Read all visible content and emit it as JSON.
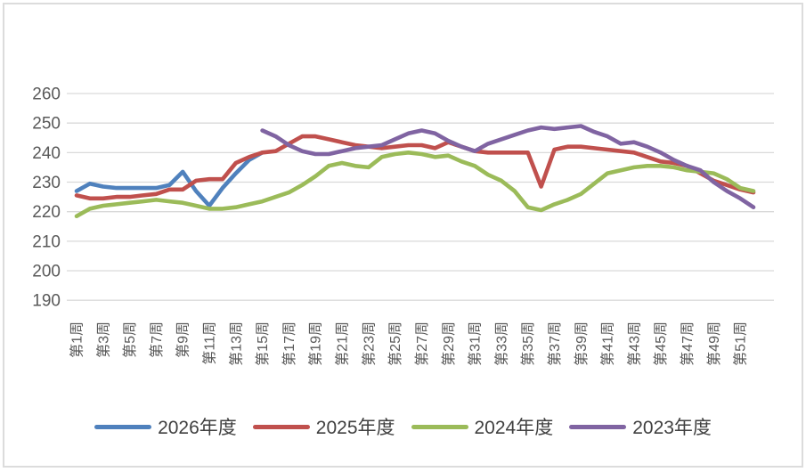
{
  "chart_data": {
    "type": "line",
    "title": "",
    "xlabel": "",
    "ylabel": "",
    "grid": true,
    "legend_position": "bottom",
    "y_axis": {
      "min": 190,
      "max": 260,
      "step": 10,
      "ticks": [
        260,
        250,
        240,
        230,
        220,
        210,
        200,
        190
      ]
    },
    "x_axis": {
      "unit": "week",
      "weeks_total": 52,
      "tick_labels": [
        "第1周",
        "第3周",
        "第5周",
        "第7周",
        "第9周",
        "第11周",
        "第13周",
        "第15周",
        "第17周",
        "第19周",
        "第21周",
        "第23周",
        "第25周",
        "第27周",
        "第29周",
        "第31周",
        "第33周",
        "第35周",
        "第37周",
        "第39周",
        "第41周",
        "第43周",
        "第45周",
        "第47周",
        "第49周",
        "第51周"
      ],
      "tick_weeks": [
        1,
        3,
        5,
        7,
        9,
        11,
        13,
        15,
        17,
        19,
        21,
        23,
        25,
        27,
        29,
        31,
        33,
        35,
        37,
        39,
        41,
        43,
        45,
        47,
        49,
        51
      ]
    },
    "series": [
      {
        "name": "2026年度",
        "color": "#4F81BD",
        "values": [
          227,
          229.5,
          228.5,
          228,
          228,
          228,
          228,
          229,
          233.5,
          227,
          222,
          228,
          233,
          237.5,
          240,
          null,
          null,
          null,
          null,
          null,
          null,
          null,
          null,
          null,
          null,
          null,
          null,
          null,
          null,
          null,
          null,
          null,
          null,
          null,
          null,
          null,
          null,
          null,
          null,
          null,
          null,
          null,
          null,
          null,
          null,
          null,
          null,
          null,
          null,
          null,
          null,
          null
        ]
      },
      {
        "name": "2025年度",
        "color": "#C0504D",
        "values": [
          225.5,
          224.5,
          224.5,
          225,
          225,
          225.5,
          226,
          227.5,
          227.5,
          230.5,
          231,
          231,
          236.5,
          238.5,
          240,
          240.5,
          243,
          245.5,
          245.5,
          244.5,
          243.5,
          242.5,
          242,
          241.5,
          242,
          242.5,
          242.5,
          241.5,
          243.5,
          242,
          240.5,
          240,
          240,
          240,
          240,
          228.5,
          241,
          242,
          242,
          241.5,
          241,
          240.5,
          240,
          238.5,
          237,
          236.5,
          235.5,
          233,
          230.5,
          229,
          227.5,
          226.5
        ]
      },
      {
        "name": "2024年度",
        "color": "#9BBB59",
        "values": [
          218.5,
          221,
          222,
          222.5,
          223,
          223.5,
          224,
          223.5,
          223,
          222,
          221,
          221,
          221.5,
          222.5,
          223.5,
          225,
          226.5,
          229,
          232,
          235.5,
          236.5,
          235.5,
          235,
          238.5,
          239.5,
          240,
          239.5,
          238.5,
          239,
          237,
          235.5,
          232.5,
          230.5,
          227,
          221.5,
          220.5,
          222.5,
          224,
          226,
          229.5,
          233,
          234,
          235,
          235.5,
          235.5,
          235,
          234,
          233.5,
          233,
          231,
          228,
          227
        ]
      },
      {
        "name": "2023年度",
        "color": "#8064A2",
        "values": [
          null,
          null,
          null,
          null,
          null,
          null,
          null,
          null,
          null,
          null,
          null,
          null,
          null,
          null,
          247.5,
          245.5,
          242.5,
          240.5,
          239.5,
          239.5,
          240.5,
          241.5,
          242,
          242.5,
          244.5,
          246.5,
          247.5,
          246.5,
          244,
          242,
          240.5,
          243,
          244.5,
          246,
          247.5,
          248.5,
          248,
          248.5,
          249,
          247,
          245.5,
          243,
          243.5,
          242,
          240,
          237.5,
          235.5,
          234,
          230,
          227,
          224.5,
          221.5
        ]
      }
    ]
  },
  "legend": {
    "items": [
      {
        "label": "2026年度",
        "color": "#4F81BD"
      },
      {
        "label": "2025年度",
        "color": "#C0504D"
      },
      {
        "label": "2024年度",
        "color": "#9BBB59"
      },
      {
        "label": "2023年度",
        "color": "#8064A2"
      }
    ]
  },
  "style": {
    "gridline_color": "#D9D9D9",
    "axis_label_color": "#595959",
    "frame_border_color": "#DCDCDC",
    "background": "#FFFFFF"
  }
}
